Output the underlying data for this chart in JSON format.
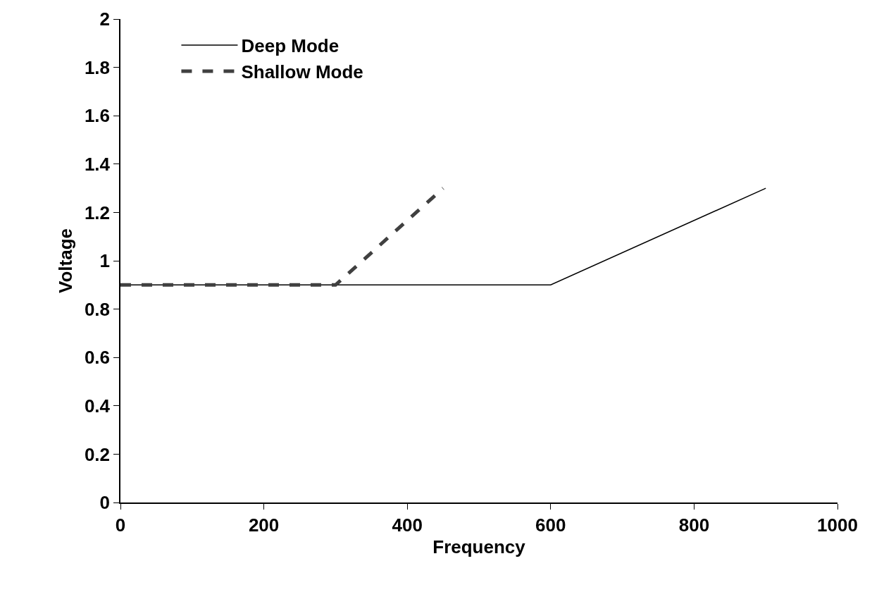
{
  "chart_data": {
    "type": "line",
    "xlabel": "Frequency",
    "ylabel": "Voltage",
    "xlim": [
      0,
      1000
    ],
    "xticks": [
      0,
      200,
      400,
      600,
      800,
      1000
    ],
    "ylim": [
      0,
      2
    ],
    "yticks": [
      0,
      0.2,
      0.4,
      0.6,
      0.8,
      1,
      1.2,
      1.4,
      1.6,
      1.8,
      2
    ],
    "grid": false,
    "legend": "top left",
    "marker": "none",
    "series": [
      {
        "name": "Deep Mode",
        "color": "#000000",
        "line_style": "solid",
        "x": [
          0,
          600,
          900
        ],
        "values": [
          0.9,
          0.9,
          1.3
        ]
      },
      {
        "name": "Shallow Mode",
        "color": "#404040",
        "line_style": "dashed",
        "x": [
          0,
          300,
          450
        ],
        "values": [
          0.9,
          0.9,
          1.3
        ]
      }
    ]
  }
}
